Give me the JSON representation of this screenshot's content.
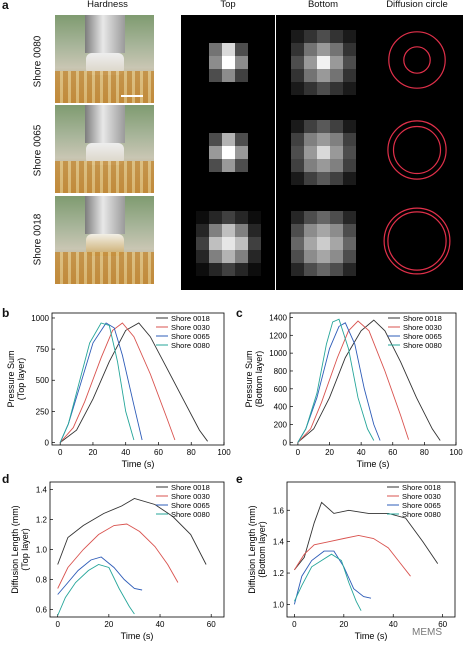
{
  "panel_labels": {
    "a": "a",
    "b": "b",
    "c": "c",
    "d": "d",
    "e": "e"
  },
  "panel_a": {
    "column_headers": [
      "Hardness",
      "Top",
      "Bottom",
      "Diffusion circle"
    ],
    "row_labels": [
      "Shore 0080",
      "Shore 0065",
      "Shore 0018"
    ],
    "heatmaps": [
      {
        "top": [
          [
            0,
            0,
            0,
            0,
            0
          ],
          [
            0,
            0.45,
            0.85,
            0.3,
            0
          ],
          [
            0,
            0.55,
            1,
            0.55,
            0
          ],
          [
            0,
            0.3,
            0.55,
            0.25,
            0
          ],
          [
            0,
            0,
            0,
            0,
            0
          ]
        ],
        "bottom": [
          [
            0.1,
            0.2,
            0.3,
            0.2,
            0.1
          ],
          [
            0.2,
            0.45,
            0.6,
            0.45,
            0.2
          ],
          [
            0.3,
            0.6,
            0.95,
            0.6,
            0.3
          ],
          [
            0.2,
            0.45,
            0.6,
            0.45,
            0.2
          ],
          [
            0.1,
            0.2,
            0.3,
            0.2,
            0.1
          ]
        ]
      },
      {
        "top": [
          [
            0,
            0,
            0,
            0,
            0
          ],
          [
            0,
            0.3,
            0.7,
            0.3,
            0
          ],
          [
            0,
            0.6,
            1,
            0.6,
            0
          ],
          [
            0,
            0.3,
            0.6,
            0.3,
            0
          ],
          [
            0,
            0,
            0,
            0,
            0
          ]
        ],
        "bottom": [
          [
            0.1,
            0.25,
            0.35,
            0.25,
            0.1
          ],
          [
            0.25,
            0.5,
            0.6,
            0.5,
            0.25
          ],
          [
            0.3,
            0.6,
            0.85,
            0.6,
            0.3
          ],
          [
            0.25,
            0.5,
            0.6,
            0.5,
            0.25
          ],
          [
            0.1,
            0.25,
            0.35,
            0.25,
            0.1
          ]
        ]
      },
      {
        "top": [
          [
            0.05,
            0.15,
            0.25,
            0.15,
            0.05
          ],
          [
            0.15,
            0.5,
            0.75,
            0.5,
            0.15
          ],
          [
            0.25,
            0.75,
            0.9,
            0.75,
            0.25
          ],
          [
            0.15,
            0.5,
            0.7,
            0.5,
            0.15
          ],
          [
            0.05,
            0.15,
            0.25,
            0.15,
            0.05
          ]
        ],
        "bottom": [
          [
            0.15,
            0.3,
            0.4,
            0.3,
            0.15
          ],
          [
            0.3,
            0.55,
            0.65,
            0.55,
            0.3
          ],
          [
            0.4,
            0.65,
            0.8,
            0.65,
            0.4
          ],
          [
            0.3,
            0.55,
            0.65,
            0.55,
            0.3
          ],
          [
            0.15,
            0.3,
            0.4,
            0.3,
            0.15
          ]
        ]
      }
    ],
    "circles": [
      {
        "inner": 0.28,
        "outer": 0.6
      },
      {
        "inner": 0.5,
        "outer": 0.62
      },
      {
        "inner": 0.62,
        "outer": 0.7
      }
    ]
  },
  "colors": {
    "shore_0018": "#333333",
    "shore_0030": "#d9534f",
    "shore_0065": "#2e5cb8",
    "shore_0080": "#26a69a",
    "circle": "#e0304a"
  },
  "chart_data": [
    {
      "id": "b",
      "type": "line",
      "xlabel": "Time (s)",
      "ylabel_line1": "Pressure Sum",
      "ylabel_line2": "(Top layer)",
      "xlim": [
        -5,
        100
      ],
      "ylim": [
        -20,
        1040
      ],
      "xticks": [
        0,
        20,
        40,
        60,
        80,
        100
      ],
      "yticks": [
        0,
        250,
        500,
        750,
        1000
      ],
      "series": [
        {
          "name": "Shore 0018",
          "color_key": "shore_0018",
          "x": [
            0,
            10,
            20,
            30,
            40,
            48,
            55,
            65,
            75,
            85,
            90
          ],
          "y": [
            0,
            100,
            350,
            650,
            900,
            960,
            850,
            600,
            350,
            100,
            10
          ]
        },
        {
          "name": "Shore 0030",
          "color_key": "shore_0030",
          "x": [
            0,
            8,
            15,
            25,
            32,
            38,
            45,
            55,
            65,
            70
          ],
          "y": [
            0,
            120,
            330,
            680,
            900,
            960,
            850,
            550,
            200,
            20
          ]
        },
        {
          "name": "Shore 0065",
          "color_key": "shore_0065",
          "x": [
            0,
            5,
            12,
            20,
            28,
            33,
            38,
            45,
            50
          ],
          "y": [
            0,
            150,
            450,
            800,
            960,
            920,
            700,
            300,
            20
          ]
        },
        {
          "name": "Shore 0080",
          "color_key": "shore_0080",
          "x": [
            0,
            5,
            12,
            18,
            25,
            30,
            35,
            40,
            45
          ],
          "y": [
            0,
            150,
            500,
            800,
            960,
            940,
            650,
            250,
            20
          ]
        }
      ]
    },
    {
      "id": "c",
      "type": "line",
      "xlabel": "Time (s)",
      "ylabel_line1": "Pressure Sum",
      "ylabel_line2": "(Bottom layer)",
      "xlim": [
        -5,
        100
      ],
      "ylim": [
        -30,
        1450
      ],
      "xticks": [
        0,
        20,
        40,
        60,
        80,
        100
      ],
      "yticks": [
        0,
        200,
        400,
        600,
        800,
        1000,
        1200,
        1400
      ],
      "series": [
        {
          "name": "Shore 0018",
          "color_key": "shore_0018",
          "x": [
            0,
            10,
            20,
            30,
            40,
            48,
            55,
            65,
            75,
            85,
            90
          ],
          "y": [
            0,
            150,
            500,
            950,
            1250,
            1370,
            1250,
            900,
            500,
            150,
            20
          ]
        },
        {
          "name": "Shore 0030",
          "color_key": "shore_0030",
          "x": [
            0,
            8,
            15,
            25,
            32,
            38,
            45,
            55,
            65,
            70
          ],
          "y": [
            0,
            150,
            450,
            950,
            1250,
            1360,
            1250,
            800,
            300,
            30
          ]
        },
        {
          "name": "Shore 0065",
          "color_key": "shore_0065",
          "x": [
            0,
            5,
            12,
            20,
            26,
            30,
            36,
            42,
            48,
            52
          ],
          "y": [
            0,
            150,
            500,
            1050,
            1300,
            1340,
            1100,
            600,
            200,
            20
          ]
        },
        {
          "name": "Shore 0080",
          "color_key": "shore_0080",
          "x": [
            0,
            5,
            12,
            18,
            22,
            26,
            32,
            38,
            44,
            48
          ],
          "y": [
            0,
            150,
            550,
            1100,
            1350,
            1380,
            1050,
            500,
            150,
            20
          ]
        }
      ]
    },
    {
      "id": "d",
      "type": "line",
      "xlabel": "Time (s)",
      "ylabel_line1": "Diffusion Length (mm)",
      "ylabel_line2": "(Top layer)",
      "xlim": [
        -3,
        65
      ],
      "ylim": [
        0.55,
        1.45
      ],
      "xticks": [
        0,
        20,
        40,
        60
      ],
      "yticks": [
        0.6,
        0.8,
        1.0,
        1.2,
        1.4
      ],
      "series": [
        {
          "name": "Shore 0018",
          "color_key": "shore_0018",
          "x": [
            0,
            4,
            10,
            18,
            25,
            30,
            38,
            45,
            52,
            58
          ],
          "y": [
            0.9,
            1.08,
            1.16,
            1.24,
            1.29,
            1.34,
            1.3,
            1.22,
            1.1,
            0.9
          ]
        },
        {
          "name": "Shore 0030",
          "color_key": "shore_0030",
          "x": [
            0,
            4,
            10,
            16,
            22,
            27,
            32,
            38,
            43,
            47
          ],
          "y": [
            0.74,
            0.88,
            1.0,
            1.1,
            1.16,
            1.17,
            1.12,
            1.02,
            0.9,
            0.78
          ]
        },
        {
          "name": "Shore 0065",
          "color_key": "shore_0065",
          "x": [
            0,
            3,
            8,
            13,
            17,
            22,
            26,
            30,
            33
          ],
          "y": [
            0.7,
            0.76,
            0.86,
            0.93,
            0.95,
            0.88,
            0.8,
            0.74,
            0.73
          ]
        },
        {
          "name": "Shore 0080",
          "color_key": "shore_0080",
          "x": [
            0,
            3,
            7,
            12,
            16,
            20,
            24,
            28,
            30
          ],
          "y": [
            0.56,
            0.68,
            0.78,
            0.86,
            0.9,
            0.88,
            0.74,
            0.62,
            0.57
          ]
        }
      ]
    },
    {
      "id": "e",
      "type": "line",
      "xlabel": "Time (s)",
      "ylabel_line1": "Diffusion Length (mm)",
      "ylabel_line2": "(Bottom layer)",
      "xlim": [
        -3,
        65
      ],
      "ylim": [
        0.92,
        1.78
      ],
      "xticks": [
        0,
        20,
        40,
        60
      ],
      "yticks": [
        1.0,
        1.2,
        1.4,
        1.6
      ],
      "series": [
        {
          "name": "Shore 0018",
          "color_key": "shore_0018",
          "x": [
            0,
            4,
            8,
            11,
            16,
            22,
            30,
            38,
            45,
            52,
            58
          ],
          "y": [
            1.22,
            1.3,
            1.52,
            1.65,
            1.58,
            1.6,
            1.58,
            1.58,
            1.55,
            1.4,
            1.26
          ]
        },
        {
          "name": "Shore 0030",
          "color_key": "shore_0030",
          "x": [
            0,
            4,
            8,
            14,
            20,
            26,
            32,
            38,
            42,
            47
          ],
          "y": [
            1.22,
            1.32,
            1.38,
            1.4,
            1.42,
            1.44,
            1.42,
            1.36,
            1.28,
            1.18
          ]
        },
        {
          "name": "Shore 0065",
          "color_key": "shore_0065",
          "x": [
            0,
            3,
            7,
            12,
            16,
            20,
            24,
            28,
            31
          ],
          "y": [
            1.0,
            1.18,
            1.28,
            1.34,
            1.34,
            1.24,
            1.1,
            1.05,
            1.04
          ]
        },
        {
          "name": "Shore 0080",
          "color_key": "shore_0080",
          "x": [
            0,
            3,
            7,
            11,
            15,
            19,
            22,
            25,
            27
          ],
          "y": [
            1.02,
            1.12,
            1.24,
            1.28,
            1.32,
            1.28,
            1.14,
            1.02,
            0.96
          ]
        }
      ]
    }
  ],
  "watermark": "MEMS"
}
